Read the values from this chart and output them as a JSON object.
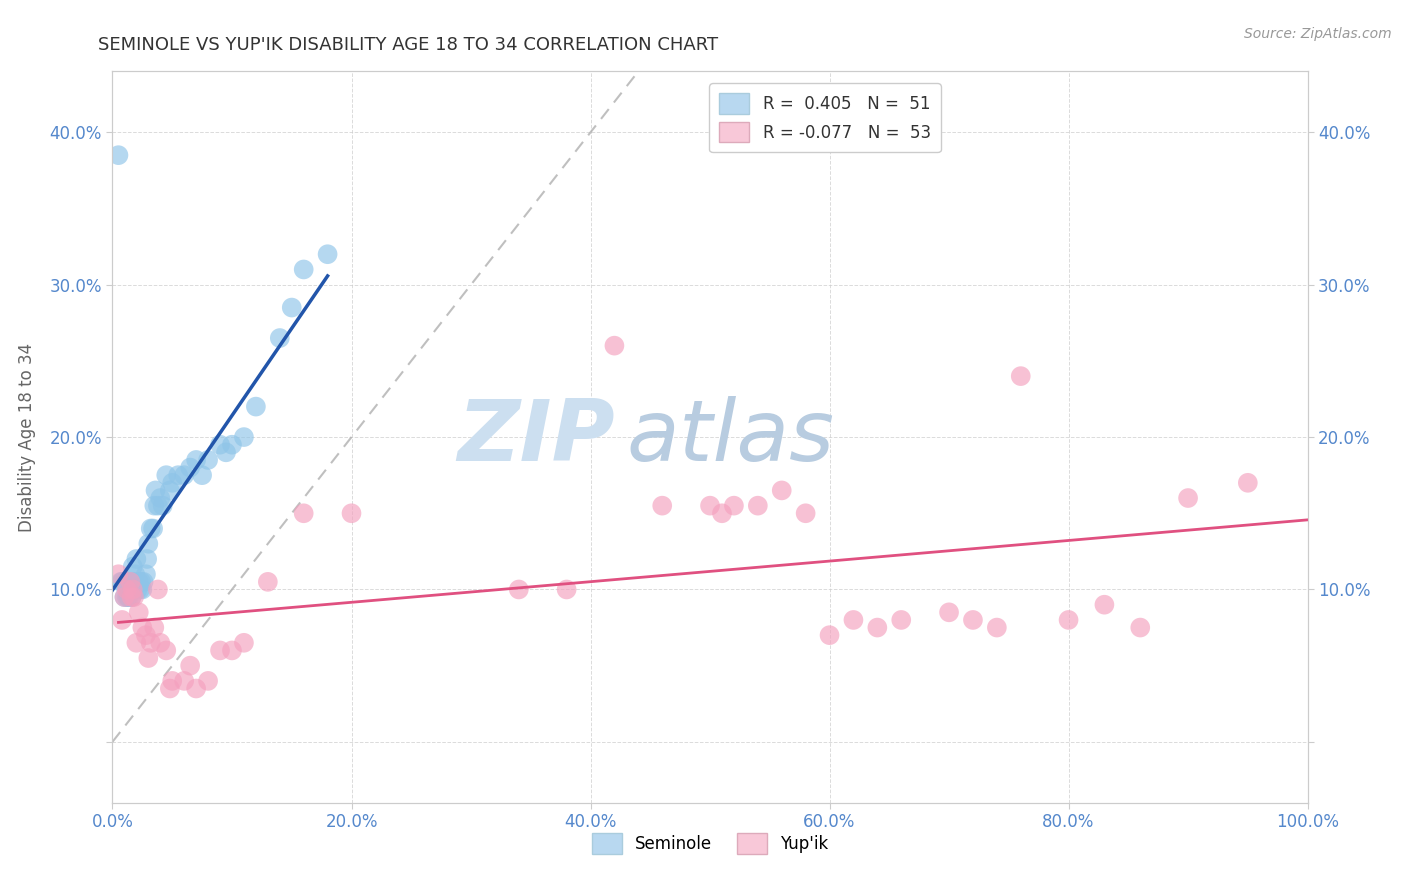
{
  "title": "SEMINOLE VS YUP'IK DISABILITY AGE 18 TO 34 CORRELATION CHART",
  "source_text": "Source: ZipAtlas.com",
  "ylabel": "Disability Age 18 to 34",
  "xlim": [
    0,
    1.0
  ],
  "ylim": [
    -0.04,
    0.44
  ],
  "xticks": [
    0.0,
    0.2,
    0.4,
    0.6,
    0.8,
    1.0
  ],
  "yticks": [
    0.0,
    0.1,
    0.2,
    0.3,
    0.4
  ],
  "xtick_labels": [
    "0.0%",
    "20.0%",
    "40.0%",
    "60.0%",
    "80.0%",
    "100.0%"
  ],
  "ytick_labels": [
    "",
    "10.0%",
    "20.0%",
    "30.0%",
    "40.0%"
  ],
  "seminole_R": 0.405,
  "seminole_N": 51,
  "yupik_R": -0.077,
  "yupik_N": 53,
  "seminole_color": "#8ec4e8",
  "yupik_color": "#f4a0be",
  "seminole_line_color": "#2255aa",
  "yupik_line_color": "#e05080",
  "ref_line_color": "#b0b0b0",
  "legend_color_seminole": "#b8d8f0",
  "legend_color_yupik": "#f8c8d8",
  "title_color": "#444444",
  "axis_label_color": "#666666",
  "tick_label_color": "#5588cc",
  "watermark_zip": "ZIP",
  "watermark_atlas": "atlas",
  "watermark_color_zip": "#d8e8f8",
  "watermark_color_atlas": "#c8d8e8",
  "background_color": "#ffffff",
  "grid_color": "#cccccc",
  "seminole_x": [
    0.005,
    0.007,
    0.008,
    0.01,
    0.01,
    0.012,
    0.013,
    0.014,
    0.015,
    0.015,
    0.016,
    0.016,
    0.017,
    0.018,
    0.018,
    0.019,
    0.02,
    0.021,
    0.022,
    0.023,
    0.024,
    0.025,
    0.026,
    0.028,
    0.029,
    0.03,
    0.032,
    0.034,
    0.035,
    0.036,
    0.038,
    0.04,
    0.042,
    0.045,
    0.048,
    0.05,
    0.055,
    0.06,
    0.065,
    0.07,
    0.075,
    0.08,
    0.09,
    0.095,
    0.1,
    0.11,
    0.12,
    0.14,
    0.15,
    0.16,
    0.18
  ],
  "seminole_y": [
    0.385,
    0.105,
    0.105,
    0.105,
    0.095,
    0.095,
    0.095,
    0.095,
    0.1,
    0.105,
    0.1,
    0.095,
    0.115,
    0.1,
    0.105,
    0.11,
    0.12,
    0.1,
    0.105,
    0.1,
    0.105,
    0.1,
    0.105,
    0.11,
    0.12,
    0.13,
    0.14,
    0.14,
    0.155,
    0.165,
    0.155,
    0.16,
    0.155,
    0.175,
    0.165,
    0.17,
    0.175,
    0.175,
    0.18,
    0.185,
    0.175,
    0.185,
    0.195,
    0.19,
    0.195,
    0.2,
    0.22,
    0.265,
    0.285,
    0.31,
    0.32
  ],
  "yupik_x": [
    0.005,
    0.008,
    0.01,
    0.012,
    0.015,
    0.016,
    0.017,
    0.018,
    0.02,
    0.022,
    0.025,
    0.028,
    0.03,
    0.032,
    0.035,
    0.038,
    0.04,
    0.045,
    0.048,
    0.05,
    0.06,
    0.065,
    0.07,
    0.08,
    0.09,
    0.1,
    0.11,
    0.13,
    0.16,
    0.2,
    0.34,
    0.38,
    0.42,
    0.46,
    0.5,
    0.51,
    0.52,
    0.54,
    0.56,
    0.58,
    0.6,
    0.62,
    0.64,
    0.66,
    0.7,
    0.72,
    0.74,
    0.76,
    0.8,
    0.83,
    0.86,
    0.9,
    0.95
  ],
  "yupik_y": [
    0.11,
    0.08,
    0.095,
    0.1,
    0.105,
    0.095,
    0.1,
    0.095,
    0.065,
    0.085,
    0.075,
    0.07,
    0.055,
    0.065,
    0.075,
    0.1,
    0.065,
    0.06,
    0.035,
    0.04,
    0.04,
    0.05,
    0.035,
    0.04,
    0.06,
    0.06,
    0.065,
    0.105,
    0.15,
    0.15,
    0.1,
    0.1,
    0.26,
    0.155,
    0.155,
    0.15,
    0.155,
    0.155,
    0.165,
    0.15,
    0.07,
    0.08,
    0.075,
    0.08,
    0.085,
    0.08,
    0.075,
    0.24,
    0.08,
    0.09,
    0.075,
    0.16,
    0.17
  ]
}
